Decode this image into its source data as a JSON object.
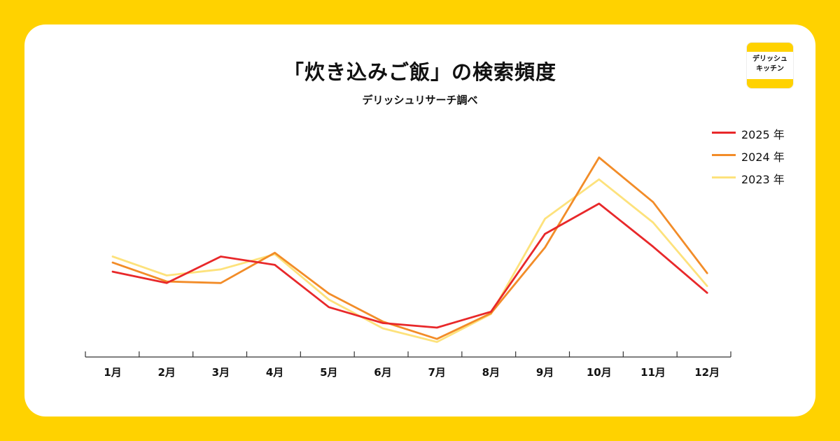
{
  "header": {
    "title": "「炊き込みご飯」の検索頻度",
    "subtitle": "デリッシュリサーチ調べ"
  },
  "logo": {
    "line1": "デリッシュ",
    "line2": "キッチン"
  },
  "colors": {
    "background": "#FFD200",
    "card": "#FFFFFF"
  },
  "chart_data": {
    "type": "line",
    "title": "「炊き込みご飯」の検索頻度",
    "subtitle": "デリッシュリサーチ調べ",
    "categories": [
      "1月",
      "2月",
      "3月",
      "4月",
      "5月",
      "6月",
      "7月",
      "8月",
      "9月",
      "10月",
      "11月",
      "12月"
    ],
    "series": [
      {
        "name": "2025 年",
        "color": "#E8282A",
        "values": [
          39.6,
          33.6,
          47.6,
          43.2,
          20.8,
          12.4,
          10.0,
          18.4,
          59.6,
          75.6,
          52.8,
          28.4
        ]
      },
      {
        "name": "2024 年",
        "color": "#F28C28",
        "values": [
          44.4,
          34.4,
          33.6,
          49.6,
          28.0,
          13.2,
          4.0,
          17.6,
          52.4,
          100.0,
          76.4,
          38.8
        ]
      },
      {
        "name": "2023 年",
        "color": "#FDE27C",
        "values": [
          47.6,
          37.6,
          40.8,
          48.8,
          24.8,
          9.6,
          2.4,
          17.2,
          67.6,
          88.4,
          65.6,
          32.0
        ]
      }
    ],
    "ylim": [
      0,
      108
    ],
    "y_axis_visible": false,
    "grid": false,
    "legend": "top-right"
  }
}
